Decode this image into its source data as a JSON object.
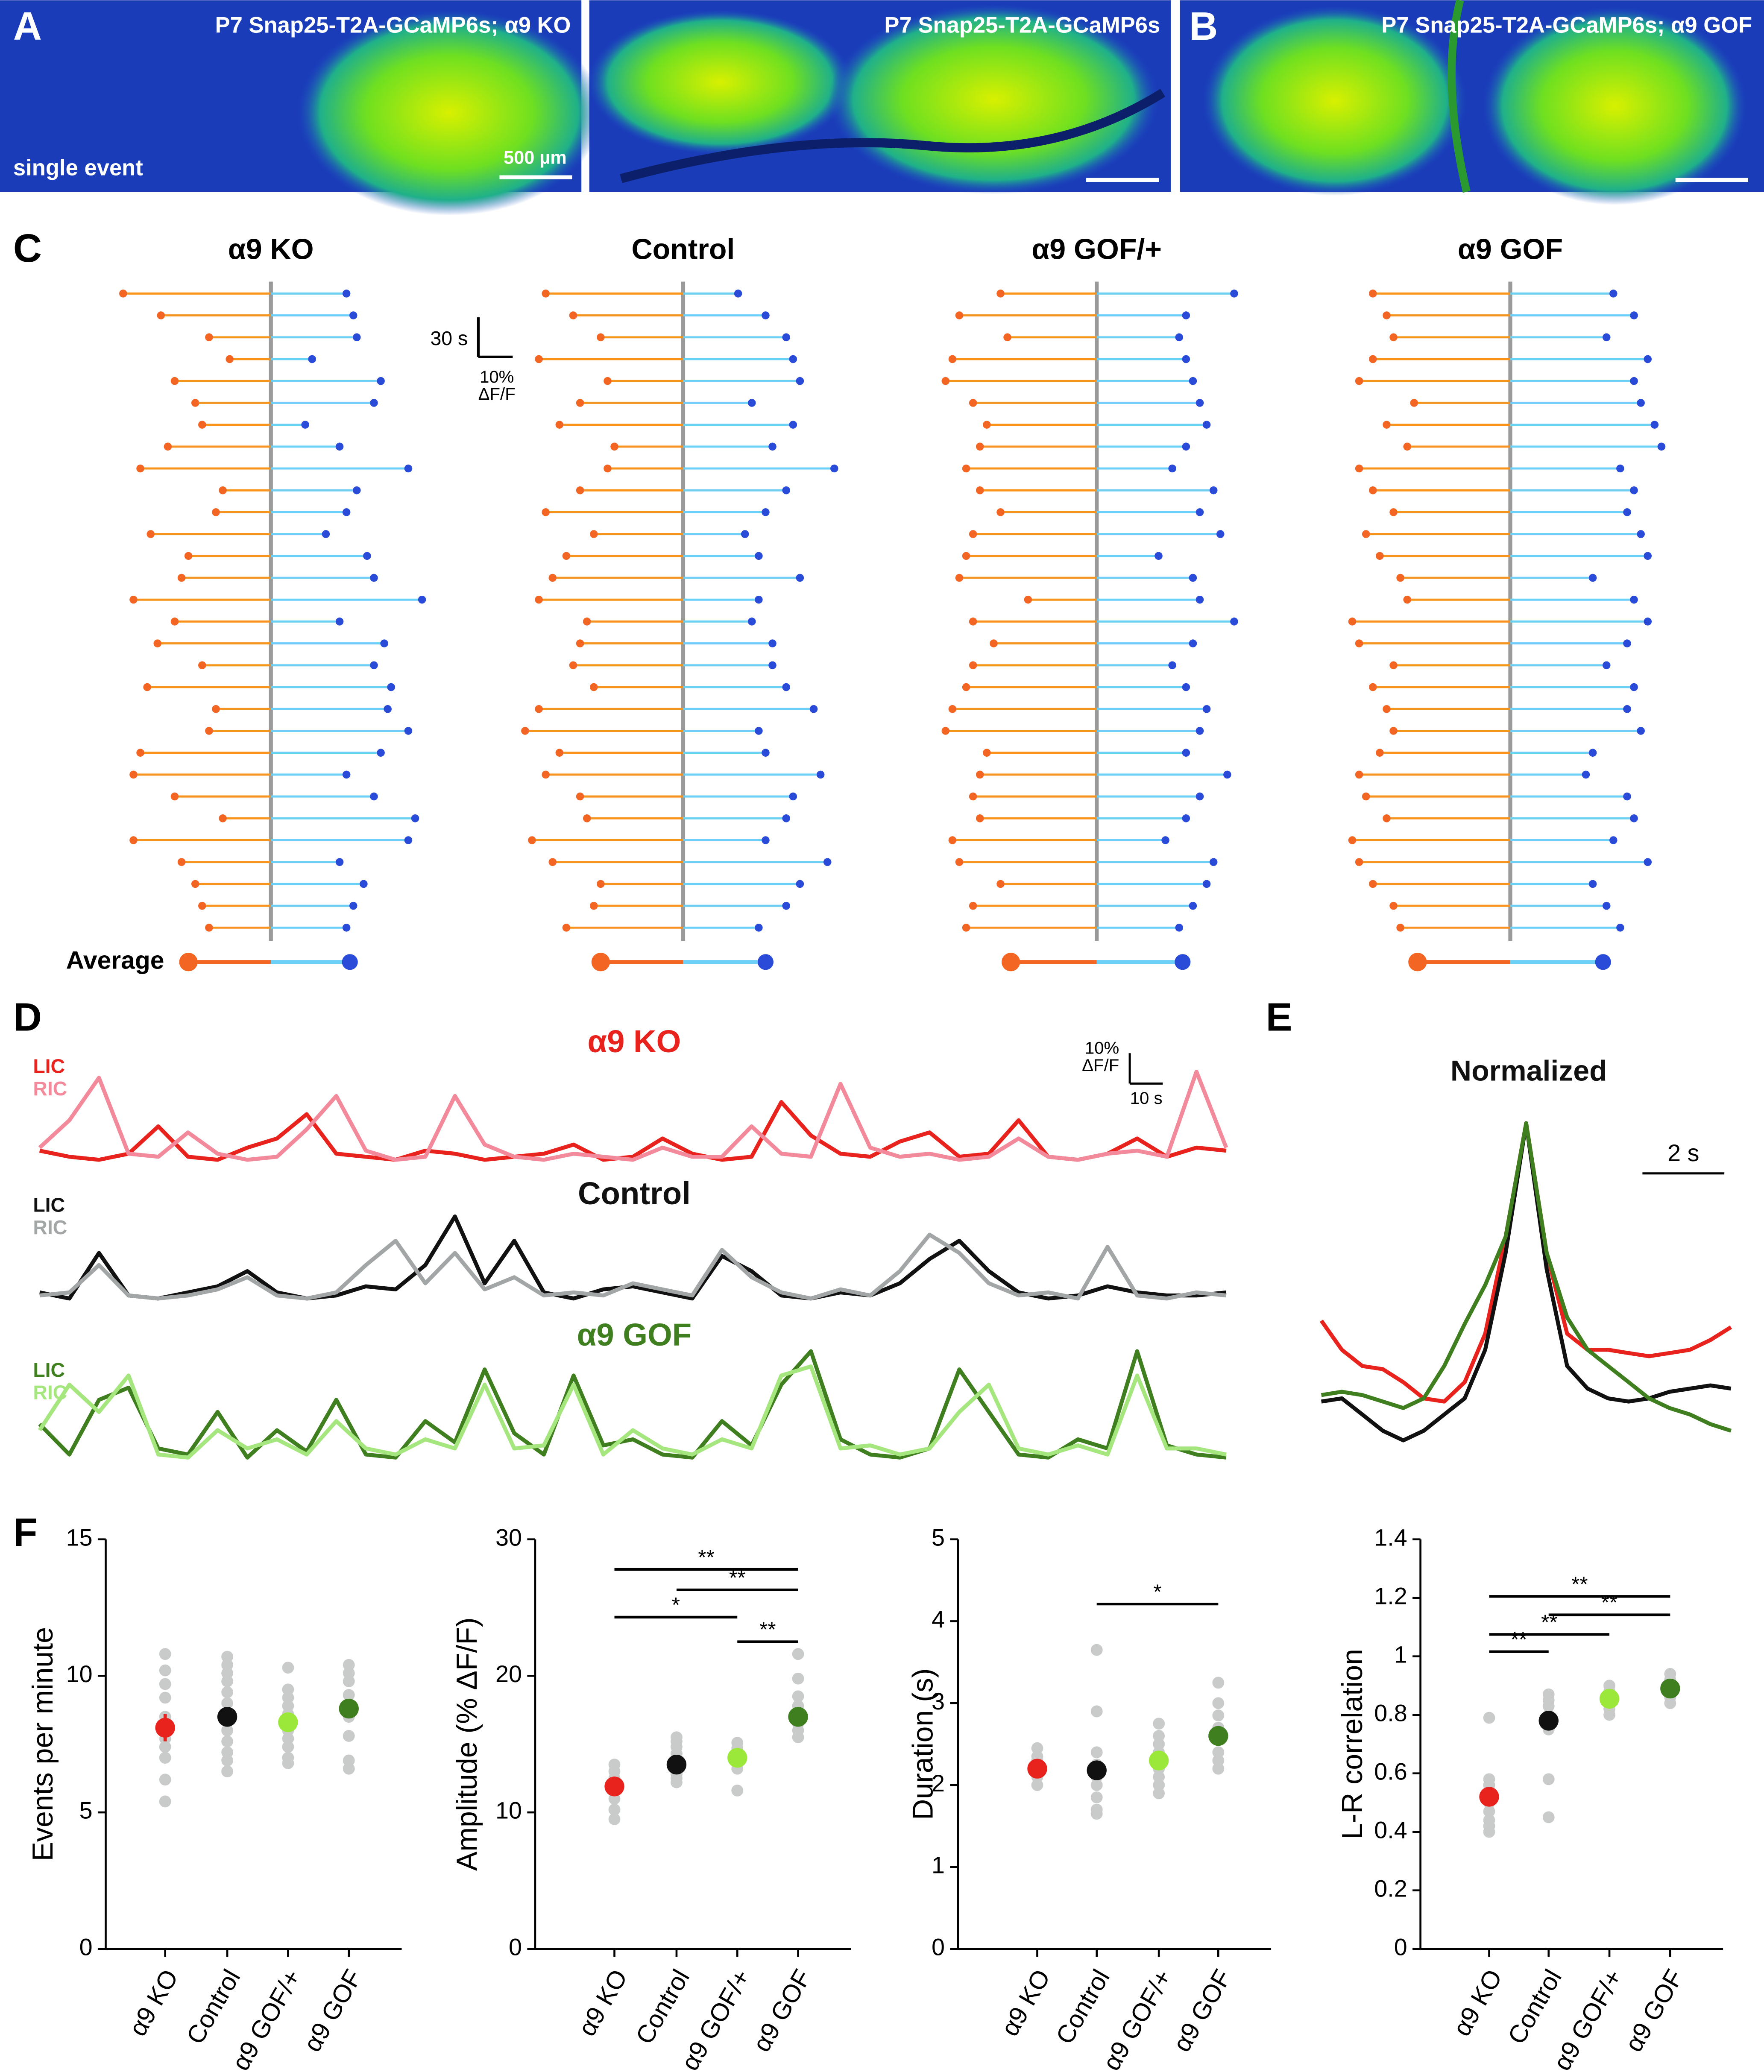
{
  "panel_labels": [
    "A",
    "B",
    "C",
    "D",
    "E",
    "F"
  ],
  "images": [
    {
      "title": "P7 Snap25-T2A-GCaMP6s; α9 KO",
      "note": "single event",
      "scale": "500 µm"
    },
    {
      "title": "P7 Snap25-T2A-GCaMP6s"
    },
    {
      "title": "P7 Snap25-T2A-GCaMP6s; α9 GOF"
    }
  ],
  "chart_data": [
    {
      "type": "lollipop",
      "title": "α9 KO",
      "left": [
        43,
        32,
        18,
        12,
        28,
        22,
        20,
        30,
        38,
        14,
        16,
        35,
        24,
        26,
        40,
        28,
        33,
        20,
        36,
        16,
        18,
        38,
        40,
        28,
        14,
        40,
        26,
        22,
        20,
        18
      ],
      "right": [
        22,
        24,
        25,
        12,
        32,
        30,
        10,
        20,
        40,
        25,
        22,
        16,
        28,
        30,
        44,
        20,
        33,
        30,
        35,
        34,
        40,
        32,
        22,
        30,
        42,
        40,
        20,
        27,
        24,
        22
      ],
      "average": [
        24,
        23
      ],
      "average_label": "Average",
      "scale": {
        "time_label": "30 s",
        "time_value": 30,
        "amp_label": [
          "10%",
          "ΔF/F"
        ],
        "amp_value": 10
      }
    },
    {
      "type": "lollipop",
      "title": "Control",
      "left": [
        40,
        32,
        24,
        42,
        22,
        30,
        36,
        20,
        22,
        30,
        40,
        26,
        34,
        38,
        42,
        28,
        30,
        32,
        26,
        42,
        46,
        36,
        40,
        30,
        28,
        44,
        38,
        24,
        26,
        34
      ],
      "right": [
        16,
        24,
        30,
        32,
        34,
        20,
        32,
        26,
        44,
        30,
        24,
        18,
        22,
        34,
        22,
        20,
        26,
        26,
        30,
        38,
        22,
        24,
        40,
        32,
        30,
        24,
        42,
        34,
        30,
        22
      ],
      "average": [
        24,
        24
      ]
    },
    {
      "type": "lollipop",
      "title": "α9 GOF/+",
      "left": [
        28,
        40,
        26,
        42,
        44,
        36,
        32,
        34,
        38,
        34,
        28,
        36,
        38,
        40,
        20,
        36,
        30,
        36,
        38,
        42,
        44,
        32,
        34,
        36,
        34,
        42,
        40,
        28,
        36,
        38
      ],
      "right": [
        40,
        26,
        24,
        26,
        28,
        30,
        32,
        26,
        22,
        34,
        30,
        36,
        18,
        28,
        30,
        40,
        28,
        22,
        26,
        32,
        30,
        26,
        38,
        30,
        26,
        20,
        34,
        32,
        28,
        24
      ],
      "average": [
        25,
        25
      ]
    },
    {
      "type": "lollipop",
      "title": "α9 GOF",
      "left": [
        40,
        36,
        34,
        40,
        44,
        28,
        36,
        30,
        44,
        40,
        34,
        42,
        38,
        32,
        30,
        46,
        44,
        34,
        40,
        36,
        34,
        38,
        44,
        42,
        36,
        46,
        44,
        40,
        34,
        32
      ],
      "right": [
        30,
        36,
        28,
        40,
        36,
        38,
        42,
        44,
        32,
        36,
        34,
        38,
        40,
        24,
        36,
        40,
        34,
        28,
        36,
        34,
        38,
        24,
        22,
        34,
        36,
        30,
        40,
        24,
        28,
        32
      ],
      "average": [
        27,
        27
      ]
    },
    {
      "type": "line",
      "title": "α9 KO",
      "title_color": "#e8231e",
      "x": [
        0,
        9,
        18,
        27,
        36,
        45,
        54,
        63,
        72,
        81,
        90,
        99,
        108,
        117,
        126,
        135,
        144,
        153,
        162,
        171,
        180,
        189,
        198,
        207,
        216,
        225,
        234,
        243,
        252,
        261,
        270,
        279,
        288,
        297,
        306,
        315,
        324,
        333,
        342,
        351,
        360
      ],
      "series": [
        {
          "name": "LIC",
          "color": "#e8231e",
          "values": [
            4,
            2,
            1,
            3,
            12,
            2,
            1,
            5,
            8,
            16,
            3,
            2,
            1,
            4,
            3,
            1,
            2,
            3,
            6,
            1,
            2,
            8,
            3,
            1,
            2,
            20,
            9,
            3,
            2,
            7,
            10,
            2,
            3,
            14,
            2,
            1,
            3,
            8,
            2,
            5,
            4
          ]
        },
        {
          "name": "RIC",
          "color": "#f28a9b",
          "values": [
            5,
            14,
            28,
            3,
            2,
            10,
            3,
            1,
            2,
            11,
            22,
            4,
            1,
            2,
            22,
            6,
            2,
            1,
            3,
            2,
            1,
            5,
            2,
            2,
            12,
            3,
            2,
            26,
            5,
            2,
            3,
            1,
            2,
            8,
            2,
            1,
            3,
            4,
            2,
            30,
            5
          ]
        }
      ],
      "scale": {
        "x_label": "10 s",
        "x_value": 10,
        "y_label": [
          "10%",
          "ΔF/F"
        ],
        "y_value": 10
      }
    },
    {
      "type": "line",
      "title": "Control",
      "title_color": "#111111",
      "x": [
        0,
        9,
        18,
        27,
        36,
        45,
        54,
        63,
        72,
        81,
        90,
        99,
        108,
        117,
        126,
        135,
        144,
        153,
        162,
        171,
        180,
        189,
        198,
        207,
        216,
        225,
        234,
        243,
        252,
        261,
        270,
        279,
        288,
        297,
        306,
        315,
        324,
        333,
        342,
        351,
        360
      ],
      "series": [
        {
          "name": "LIC",
          "color": "#111111",
          "values": [
            3,
            1,
            16,
            2,
            1,
            3,
            5,
            10,
            3,
            1,
            2,
            5,
            4,
            12,
            28,
            6,
            20,
            3,
            1,
            4,
            5,
            3,
            1,
            15,
            10,
            2,
            1,
            3,
            2,
            6,
            14,
            20,
            10,
            3,
            1,
            2,
            5,
            3,
            2,
            2,
            3
          ]
        },
        {
          "name": "RIC",
          "color": "#a3a6a6",
          "values": [
            2,
            3,
            12,
            2,
            1,
            2,
            4,
            8,
            2,
            1,
            3,
            12,
            20,
            6,
            16,
            4,
            8,
            2,
            3,
            2,
            6,
            4,
            2,
            17,
            8,
            3,
            1,
            4,
            2,
            10,
            22,
            16,
            6,
            2,
            3,
            1,
            18,
            2,
            1,
            3,
            2
          ]
        }
      ]
    },
    {
      "type": "line",
      "title": "α9 GOF",
      "title_color": "#3f7f1f",
      "x": [
        0,
        9,
        18,
        27,
        36,
        45,
        54,
        63,
        72,
        81,
        90,
        99,
        108,
        117,
        126,
        135,
        144,
        153,
        162,
        171,
        180,
        189,
        198,
        207,
        216,
        225,
        234,
        243,
        252,
        261,
        270,
        279,
        288,
        297,
        306,
        315,
        324,
        333,
        342,
        351,
        360
      ],
      "series": [
        {
          "name": "LIC",
          "color": "#3f7f1f",
          "values": [
            14,
            4,
            22,
            26,
            6,
            4,
            18,
            3,
            12,
            5,
            22,
            4,
            3,
            15,
            8,
            32,
            11,
            4,
            30,
            7,
            9,
            4,
            3,
            15,
            7,
            27,
            38,
            9,
            4,
            3,
            6,
            32,
            18,
            4,
            3,
            9,
            6,
            38,
            7,
            4,
            3
          ]
        },
        {
          "name": "RIC",
          "color": "#a6e67e",
          "values": [
            12,
            27,
            18,
            30,
            4,
            3,
            12,
            6,
            9,
            4,
            15,
            6,
            4,
            9,
            6,
            27,
            6,
            7,
            27,
            4,
            12,
            6,
            4,
            9,
            6,
            30,
            33,
            6,
            7,
            4,
            6,
            18,
            27,
            6,
            4,
            7,
            4,
            30,
            6,
            6,
            4
          ]
        }
      ]
    },
    {
      "type": "line",
      "title": "Normalized",
      "title_color": "#111111",
      "x": [
        -5,
        -4.5,
        -4,
        -3.5,
        -3,
        -2.5,
        -2,
        -1.5,
        -1,
        -0.5,
        0,
        0.5,
        1,
        1.5,
        2,
        2.5,
        3,
        3.5,
        4,
        4.5,
        5
      ],
      "series": [
        {
          "color": "#e8231e",
          "values": [
            0.39,
            0.3,
            0.25,
            0.24,
            0.2,
            0.15,
            0.14,
            0.2,
            0.35,
            0.65,
            1,
            0.6,
            0.35,
            0.3,
            0.3,
            0.29,
            0.28,
            0.29,
            0.3,
            0.33,
            0.37
          ]
        },
        {
          "color": "#111111",
          "values": [
            0.14,
            0.15,
            0.1,
            0.05,
            0.02,
            0.05,
            0.1,
            0.15,
            0.3,
            0.6,
            1,
            0.55,
            0.25,
            0.18,
            0.15,
            0.14,
            0.15,
            0.17,
            0.18,
            0.19,
            0.18
          ]
        },
        {
          "color": "#3f7f1f",
          "values": [
            0.16,
            0.17,
            0.16,
            0.14,
            0.12,
            0.15,
            0.25,
            0.38,
            0.5,
            0.65,
            1,
            0.6,
            0.4,
            0.3,
            0.25,
            0.2,
            0.15,
            0.12,
            0.1,
            0.07,
            0.05
          ]
        }
      ],
      "scale": {
        "x_label": "2 s",
        "x_value": 2
      }
    },
    {
      "type": "scatter",
      "ylabel": "Events per minute",
      "ylim": [
        0,
        15
      ],
      "yticks": [
        0,
        5,
        10,
        15
      ],
      "categories": [
        "α9 KO",
        "Control",
        "α9 GOF/+",
        "α9 GOF"
      ],
      "groups": [
        {
          "color": "#e8231e",
          "mean": 8.1,
          "error": 0.5,
          "points": [
            10.8,
            10.2,
            9.7,
            9.2,
            8.5,
            8.0,
            7.7,
            7.4,
            7.0,
            6.2,
            5.4
          ]
        },
        {
          "color": "#111111",
          "mean": 8.5,
          "error": 0.2,
          "points": [
            10.7,
            10.4,
            10.1,
            9.8,
            9.4,
            9.0,
            8.6,
            8.3,
            8.0,
            7.6,
            7.2,
            6.9,
            6.5
          ]
        },
        {
          "color": "#9be83a",
          "mean": 8.3,
          "error": 0.25,
          "points": [
            10.3,
            9.5,
            9.2,
            8.9,
            8.6,
            8.3,
            8.0,
            7.7,
            7.4,
            7.0,
            6.8
          ]
        },
        {
          "color": "#3f7f1f",
          "mean": 8.8,
          "error": 0.35,
          "points": [
            10.4,
            10.1,
            9.8,
            9.3,
            8.8,
            8.5,
            7.8,
            6.9,
            6.6
          ]
        }
      ],
      "significance": []
    },
    {
      "type": "scatter",
      "ylabel": "Amplitude (% ΔF/F)",
      "ylim": [
        0,
        30
      ],
      "yticks": [
        0,
        10,
        20,
        30
      ],
      "categories": [
        "α9 KO",
        "Control",
        "α9 GOF/+",
        "α9 GOF"
      ],
      "groups": [
        {
          "color": "#e8231e",
          "mean": 11.9,
          "error": 0.5,
          "points": [
            13.5,
            13.0,
            12.5,
            12.0,
            11.5,
            11.0,
            10.2,
            9.5
          ]
        },
        {
          "color": "#111111",
          "mean": 13.5,
          "error": 0.3,
          "points": [
            15.5,
            15.2,
            14.8,
            14.3,
            13.8,
            13.3,
            12.8,
            12.5,
            12.2
          ]
        },
        {
          "color": "#9be83a",
          "mean": 14.0,
          "error": 0.4,
          "points": [
            15.1,
            14.7,
            14.3,
            13.8,
            13.2,
            11.6
          ]
        },
        {
          "color": "#3f7f1f",
          "mean": 17.0,
          "error": 0.5,
          "points": [
            21.6,
            19.8,
            18.5,
            17.8,
            17.2,
            16.5,
            16.0,
            15.5
          ]
        }
      ],
      "significance": [
        {
          "from": 0,
          "to": 3,
          "y": 27.8,
          "label": "**"
        },
        {
          "from": 1,
          "to": 3,
          "y": 26.3,
          "label": "**"
        },
        {
          "from": 0,
          "to": 2,
          "y": 24.3,
          "label": "*"
        },
        {
          "from": 2,
          "to": 3,
          "y": 22.5,
          "label": "**"
        }
      ]
    },
    {
      "type": "scatter",
      "ylabel": "Duration (s)",
      "ylim": [
        0,
        5
      ],
      "yticks": [
        0,
        1,
        2,
        3,
        4,
        5
      ],
      "categories": [
        "α9 KO",
        "Control",
        "α9 GOF/+",
        "α9 GOF"
      ],
      "groups": [
        {
          "color": "#e8231e",
          "mean": 2.2,
          "error": 0.07,
          "points": [
            2.45,
            2.35,
            2.3,
            2.2,
            2.1,
            2.0
          ]
        },
        {
          "color": "#111111",
          "mean": 2.18,
          "error": 0.1,
          "points": [
            3.65,
            2.9,
            2.4,
            2.25,
            2.1,
            2.0,
            1.85,
            1.7,
            1.65
          ]
        },
        {
          "color": "#9be83a",
          "mean": 2.3,
          "error": 0.07,
          "points": [
            2.75,
            2.6,
            2.5,
            2.4,
            2.3,
            2.2,
            2.1,
            2.0,
            1.9
          ]
        },
        {
          "color": "#3f7f1f",
          "mean": 2.6,
          "error": 0.12,
          "points": [
            3.25,
            3.0,
            2.85,
            2.7,
            2.55,
            2.4,
            2.3,
            2.2
          ]
        }
      ],
      "significance": [
        {
          "from": 1,
          "to": 3,
          "y": 4.21,
          "label": "*"
        }
      ]
    },
    {
      "type": "scatter",
      "ylabel": "L-R correlation",
      "ylim": [
        0,
        1.4
      ],
      "yticks": [
        0,
        0.2,
        0.4,
        0.6,
        0.8,
        1,
        1.2,
        1.4
      ],
      "categories": [
        "α9 KO",
        "Control",
        "α9 GOF/+",
        "α9 GOF"
      ],
      "groups": [
        {
          "color": "#e8231e",
          "mean": 0.52,
          "error": 0.03,
          "points": [
            0.79,
            0.58,
            0.56,
            0.53,
            0.5,
            0.47,
            0.44,
            0.42,
            0.4
          ]
        },
        {
          "color": "#111111",
          "mean": 0.78,
          "error": 0.02,
          "points": [
            0.87,
            0.85,
            0.83,
            0.8,
            0.77,
            0.75,
            0.58,
            0.45
          ]
        },
        {
          "color": "#9be83a",
          "mean": 0.855,
          "error": 0.015,
          "points": [
            0.9,
            0.88,
            0.86,
            0.84,
            0.82,
            0.8
          ]
        },
        {
          "color": "#3f7f1f",
          "mean": 0.89,
          "error": 0.02,
          "points": [
            0.94,
            0.92,
            0.9,
            0.88,
            0.86,
            0.84
          ]
        }
      ],
      "significance": [
        {
          "from": 0,
          "to": 3,
          "y": 1.205,
          "label": "**"
        },
        {
          "from": 1,
          "to": 3,
          "y": 1.142,
          "label": "**"
        },
        {
          "from": 0,
          "to": 2,
          "y": 1.075,
          "label": "**"
        },
        {
          "from": 0,
          "to": 1,
          "y": 1.016,
          "label": "**"
        }
      ]
    }
  ]
}
